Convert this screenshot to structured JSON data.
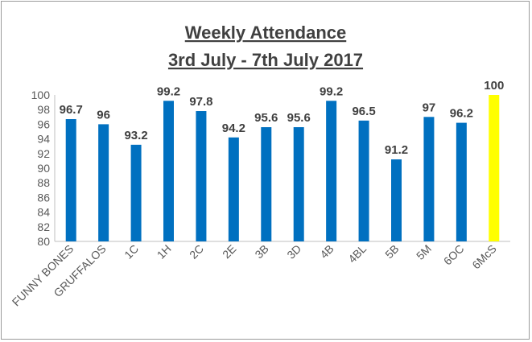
{
  "chart_data": {
    "type": "bar",
    "title_lines": [
      "Weekly Attendance",
      "3rd July - 7th July 2017"
    ],
    "categories": [
      "FUNNY BONES",
      "GRUFFALOS",
      "1C",
      "1H",
      "2C",
      "2E",
      "3B",
      "3D",
      "4B",
      "4BL",
      "5B",
      "5M",
      "6OC",
      "6McS"
    ],
    "values": [
      96.7,
      96,
      93.2,
      99.2,
      97.8,
      94.2,
      95.6,
      95.6,
      99.2,
      96.5,
      91.2,
      97,
      96.2,
      100
    ],
    "value_labels": [
      "96.7",
      "96",
      "93.2",
      "99.2",
      "97.8",
      "94.2",
      "95.6",
      "95.6",
      "99.2",
      "96.5",
      "91.2",
      "97",
      "96.2",
      "100"
    ],
    "bar_colors": [
      "#0070c0",
      "#0070c0",
      "#0070c0",
      "#0070c0",
      "#0070c0",
      "#0070c0",
      "#0070c0",
      "#0070c0",
      "#0070c0",
      "#0070c0",
      "#0070c0",
      "#0070c0",
      "#0070c0",
      "#ffff00"
    ],
    "ylim": [
      80,
      100
    ],
    "yticks": [
      "80",
      "82",
      "84",
      "86",
      "88",
      "90",
      "92",
      "94",
      "96",
      "98",
      "100"
    ],
    "grid": false,
    "legend": false,
    "xlabel": "",
    "ylabel": ""
  }
}
